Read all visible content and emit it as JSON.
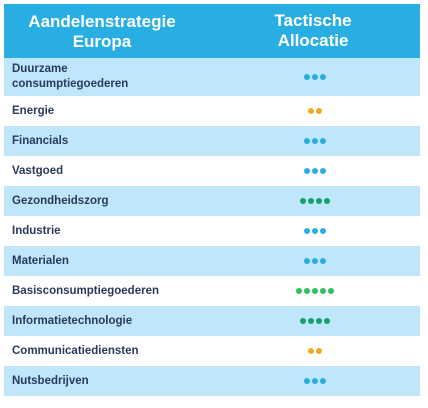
{
  "header": {
    "left": "Aandelenstrategie\nEuropa",
    "right": "Tactische\nAllocatie"
  },
  "colors": {
    "header_bg": "#29aee4",
    "row_shaded": "#bfe6fb",
    "dot_blue": "#29aee4",
    "dot_orange": "#f5a623",
    "dot_green": "#12a06c",
    "dot_bright_green": "#2dbf5a"
  },
  "rows": [
    {
      "label": "Duurzame\nconsumptiegoederen",
      "dots": 3,
      "color": "#29aee4"
    },
    {
      "label": "Energie",
      "dots": 2,
      "color": "#f5a623"
    },
    {
      "label": "Financials",
      "dots": 3,
      "color": "#29aee4"
    },
    {
      "label": "Vastgoed",
      "dots": 3,
      "color": "#29aee4"
    },
    {
      "label": "Gezondheidszorg",
      "dots": 4,
      "color": "#12a06c"
    },
    {
      "label": "Industrie",
      "dots": 3,
      "color": "#29aee4"
    },
    {
      "label": "Materialen",
      "dots": 3,
      "color": "#29aee4"
    },
    {
      "label": "Basisconsumptiegoederen",
      "dots": 5,
      "color": "#2dbf5a"
    },
    {
      "label": "Informatietechnologie",
      "dots": 4,
      "color": "#12a06c"
    },
    {
      "label": "Communicatiediensten",
      "dots": 2,
      "color": "#f5a623"
    },
    {
      "label": "Nutsbedrijven",
      "dots": 3,
      "color": "#29aee4"
    }
  ]
}
